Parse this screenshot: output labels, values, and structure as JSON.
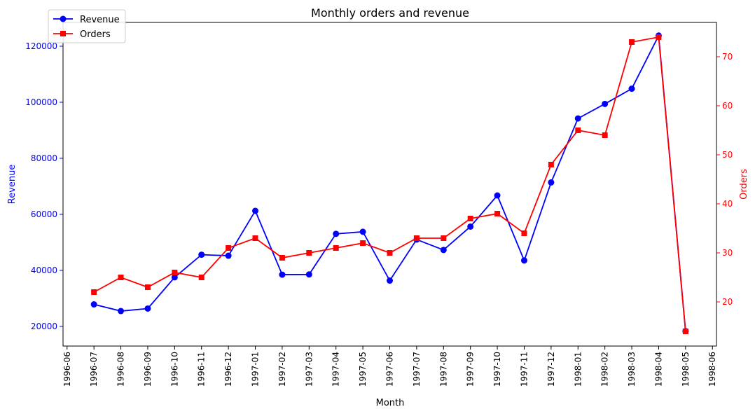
{
  "chart_data": {
    "type": "line",
    "title": "Monthly orders and revenue",
    "xlabel": "Month",
    "ylabel_left": "Revenue",
    "ylabel_right": "Orders",
    "x_ticks": [
      "1996-06",
      "1996-07",
      "1996-08",
      "1996-09",
      "1996-10",
      "1996-11",
      "1996-12",
      "1997-01",
      "1997-02",
      "1997-03",
      "1997-04",
      "1997-05",
      "1997-06",
      "1997-07",
      "1997-08",
      "1997-09",
      "1997-10",
      "1997-11",
      "1997-12",
      "1998-01",
      "1998-02",
      "1998-03",
      "1998-04",
      "1998-05",
      "1998-06"
    ],
    "x": [
      "1996-07",
      "1996-08",
      "1996-09",
      "1996-10",
      "1996-11",
      "1996-12",
      "1997-01",
      "1997-02",
      "1997-03",
      "1997-04",
      "1997-05",
      "1997-06",
      "1997-07",
      "1997-08",
      "1997-09",
      "1997-10",
      "1997-11",
      "1997-12",
      "1998-01",
      "1998-02",
      "1998-03",
      "1998-04",
      "1998-05"
    ],
    "y_left_ticks": [
      20000,
      40000,
      60000,
      80000,
      100000,
      120000
    ],
    "y_left_lim": [
      13000,
      128500
    ],
    "y_right_ticks": [
      20,
      30,
      40,
      50,
      60,
      70
    ],
    "y_right_lim": [
      11,
      77
    ],
    "grid": false,
    "legend_position": "top-left",
    "series": [
      {
        "name": "Revenue",
        "axis": "left",
        "color": "#0000ff",
        "marker": "circle",
        "values": [
          27862,
          25485,
          26382,
          37516,
          45600,
          45240,
          61258,
          38484,
          38547,
          53033,
          53782,
          36362,
          51020,
          47288,
          55629,
          66749,
          43534,
          71398,
          94222,
          99415,
          104854,
          123799,
          18334
        ]
      },
      {
        "name": "Orders",
        "axis": "right",
        "color": "#ff0000",
        "marker": "square",
        "values": [
          22,
          25,
          23,
          26,
          25,
          31,
          33,
          29,
          30,
          31,
          32,
          30,
          33,
          33,
          37,
          38,
          34,
          48,
          55,
          54,
          73,
          74,
          14
        ]
      }
    ]
  }
}
